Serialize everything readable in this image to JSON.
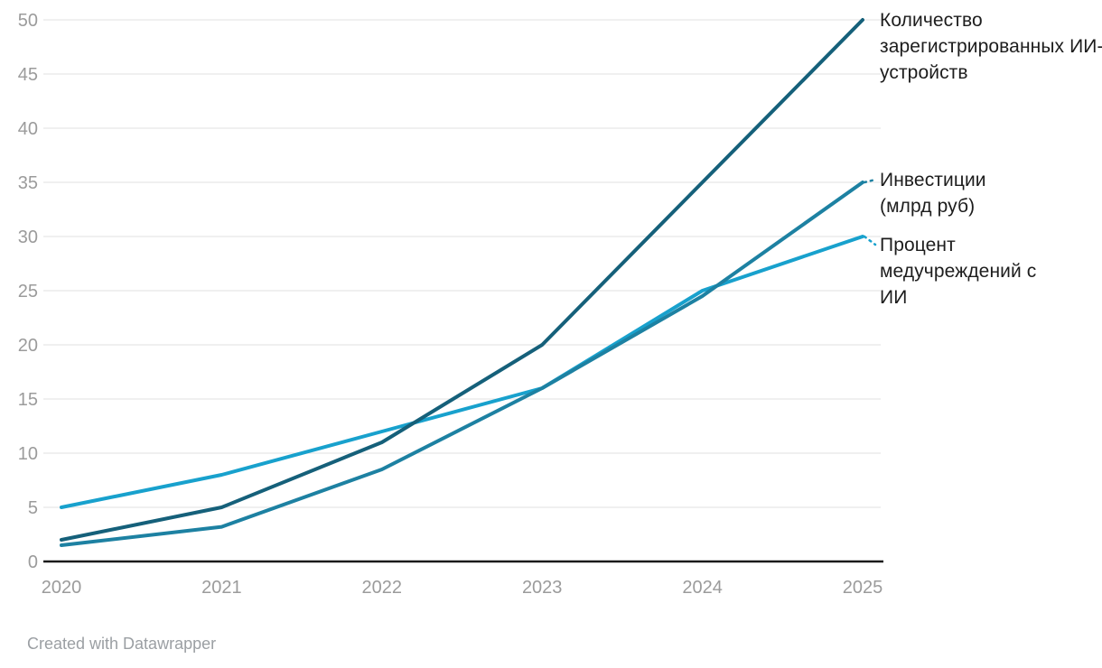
{
  "chart_data": {
    "type": "line",
    "x": [
      "2020",
      "2021",
      "2022",
      "2023",
      "2024",
      "2025"
    ],
    "series": [
      {
        "name": "Количество зарегистрированных ИИ-устройств",
        "color": "#15607a",
        "values": [
          2,
          5,
          11,
          20,
          35,
          50
        ]
      },
      {
        "name": "Инвестиции (млрд руб)",
        "color": "#1d81a2",
        "values": [
          1.5,
          3.2,
          8.5,
          16,
          24.5,
          35
        ]
      },
      {
        "name": "Процент медучреждений с ИИ",
        "color": "#18a1cd",
        "values": [
          5,
          8,
          12,
          16,
          25,
          30
        ]
      }
    ],
    "ylim": [
      0,
      50
    ],
    "ytick_step": 5,
    "yticks": [
      0,
      5,
      10,
      15,
      20,
      25,
      30,
      35,
      40,
      45,
      50
    ],
    "grid": "horizontal",
    "legend_position": "right-direct-labels"
  },
  "colors": {
    "grid": "#e8e8e8",
    "axis": "#1a1a1a",
    "tick_text": "#9b9b9b",
    "label_text": "#1d1d1d",
    "background": "#ffffff"
  },
  "footer": {
    "credit": "Created with Datawrapper"
  }
}
